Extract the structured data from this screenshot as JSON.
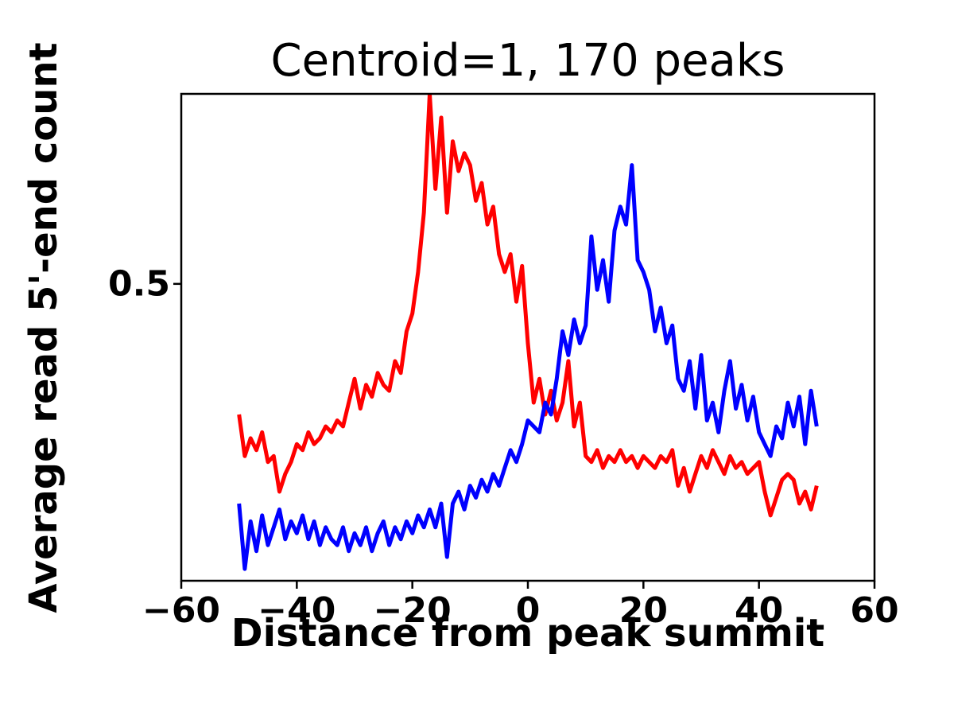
{
  "chart_data": {
    "type": "line",
    "title": "Centroid=1, 170 peaks",
    "xlabel": "Distance from peak summit",
    "ylabel": "Average read 5'-end count",
    "xlim": [
      -60,
      60
    ],
    "ylim": [
      0,
      0.82
    ],
    "xticks": [
      -60,
      -40,
      -20,
      0,
      20,
      40,
      60
    ],
    "xtick_labels": [
      "−60",
      "−40",
      "−20",
      "0",
      "20",
      "40",
      "60"
    ],
    "yticks": [
      0.5
    ],
    "ytick_labels": [
      "0.5"
    ],
    "grid": false,
    "legend": "none",
    "x": [
      -50,
      -49,
      -48,
      -47,
      -46,
      -45,
      -44,
      -43,
      -42,
      -41,
      -40,
      -39,
      -38,
      -37,
      -36,
      -35,
      -34,
      -33,
      -32,
      -31,
      -30,
      -29,
      -28,
      -27,
      -26,
      -25,
      -24,
      -23,
      -22,
      -21,
      -20,
      -19,
      -18,
      -17,
      -16,
      -15,
      -14,
      -13,
      -12,
      -11,
      -10,
      -9,
      -8,
      -7,
      -6,
      -5,
      -4,
      -3,
      -2,
      -1,
      0,
      1,
      2,
      3,
      4,
      5,
      6,
      7,
      8,
      9,
      10,
      11,
      12,
      13,
      14,
      15,
      16,
      17,
      18,
      19,
      20,
      21,
      22,
      23,
      24,
      25,
      26,
      27,
      28,
      29,
      30,
      31,
      32,
      33,
      34,
      35,
      36,
      37,
      38,
      39,
      40,
      41,
      42,
      43,
      44,
      45,
      46,
      47,
      48,
      49,
      50
    ],
    "series": [
      {
        "name": "red-line",
        "color": "#ff0000",
        "values": [
          0.28,
          0.21,
          0.24,
          0.22,
          0.25,
          0.2,
          0.21,
          0.15,
          0.18,
          0.2,
          0.23,
          0.22,
          0.25,
          0.23,
          0.24,
          0.26,
          0.25,
          0.27,
          0.26,
          0.3,
          0.34,
          0.29,
          0.33,
          0.31,
          0.35,
          0.33,
          0.32,
          0.37,
          0.35,
          0.42,
          0.45,
          0.52,
          0.62,
          0.82,
          0.66,
          0.78,
          0.62,
          0.74,
          0.69,
          0.72,
          0.7,
          0.64,
          0.67,
          0.6,
          0.63,
          0.55,
          0.52,
          0.55,
          0.47,
          0.53,
          0.4,
          0.3,
          0.34,
          0.28,
          0.32,
          0.27,
          0.3,
          0.37,
          0.26,
          0.3,
          0.21,
          0.2,
          0.22,
          0.19,
          0.21,
          0.2,
          0.22,
          0.2,
          0.21,
          0.19,
          0.21,
          0.2,
          0.19,
          0.21,
          0.2,
          0.22,
          0.16,
          0.19,
          0.15,
          0.18,
          0.21,
          0.19,
          0.22,
          0.2,
          0.18,
          0.21,
          0.19,
          0.2,
          0.18,
          0.19,
          0.2,
          0.15,
          0.11,
          0.14,
          0.17,
          0.18,
          0.17,
          0.13,
          0.15,
          0.12,
          0.16
        ]
      },
      {
        "name": "blue-line",
        "color": "#0000ff",
        "values": [
          0.13,
          0.02,
          0.1,
          0.05,
          0.11,
          0.06,
          0.09,
          0.12,
          0.07,
          0.1,
          0.08,
          0.11,
          0.07,
          0.1,
          0.06,
          0.09,
          0.07,
          0.06,
          0.09,
          0.05,
          0.08,
          0.06,
          0.09,
          0.05,
          0.08,
          0.1,
          0.06,
          0.09,
          0.07,
          0.1,
          0.08,
          0.11,
          0.09,
          0.12,
          0.09,
          0.13,
          0.04,
          0.13,
          0.15,
          0.12,
          0.16,
          0.14,
          0.17,
          0.15,
          0.18,
          0.16,
          0.19,
          0.22,
          0.2,
          0.23,
          0.27,
          0.26,
          0.25,
          0.3,
          0.28,
          0.34,
          0.42,
          0.38,
          0.44,
          0.4,
          0.43,
          0.58,
          0.49,
          0.54,
          0.47,
          0.59,
          0.63,
          0.6,
          0.7,
          0.54,
          0.52,
          0.49,
          0.42,
          0.46,
          0.4,
          0.43,
          0.34,
          0.32,
          0.37,
          0.29,
          0.38,
          0.27,
          0.3,
          0.25,
          0.32,
          0.37,
          0.29,
          0.33,
          0.27,
          0.31,
          0.25,
          0.23,
          0.21,
          0.26,
          0.24,
          0.3,
          0.26,
          0.31,
          0.23,
          0.32,
          0.26
        ]
      }
    ]
  }
}
